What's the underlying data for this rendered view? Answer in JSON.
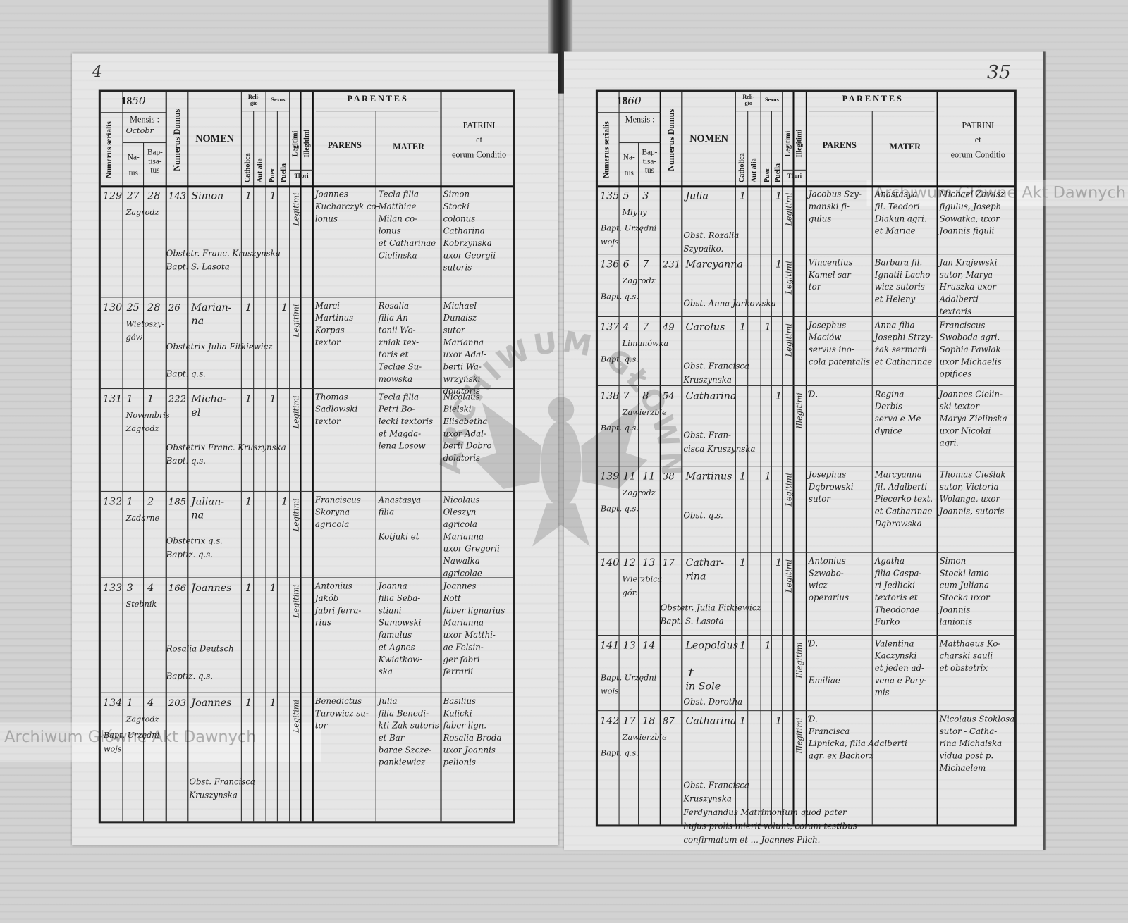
{
  "watermark": "Archiwum Główne Akt Dawnych",
  "seal_text": "ARCHIWUM GŁÓWNE AKT DAWNYCH",
  "header": {
    "year_prefix": "18",
    "mensis": "Mensis :",
    "numerus_serialis": "Numerus serialis",
    "natus": "Na-\ntus",
    "baptisatus": "Bap-\ntisa-\ntus",
    "numerus_domus": "Numerus Domus",
    "nomen": "NOMEN",
    "religio": "Reli-\ngio",
    "catholica": "Catholica",
    "aut_alia": "Aut alia",
    "sexus": "Sexus",
    "puer": "Puer",
    "puella": "Puella",
    "legitimi": "Legitimi",
    "illegitimi": "Illegitimi",
    "thori": "Thori",
    "parentes": "P A R E N T E S",
    "parens": "PARENS",
    "mater": "MATER",
    "patrini": "PATRINI\net\neorum Conditio"
  },
  "left_page": {
    "folio": "4",
    "year_hand": "50",
    "mensis_value": "Octobr",
    "rows": [
      {
        "serial": "129",
        "natus": "27",
        "baptisatus": "28",
        "domus": "143",
        "locality": "Zagrodz",
        "bapt_note": "",
        "nomen": "Simon",
        "catholica": "1",
        "sex": "puer",
        "sex_mark": "1",
        "thori": "Legitimi",
        "parens": "Joannes\nKucharczyk co-\nlonus",
        "mater": "Tecla filia\nMatthiae\nMilan co-\nlonus\net Catharinae\nCielinska",
        "patrini": "Simon\nStocki\ncolonus\nCatharina\nKobrzynska\nuxor Georgii\nsutoris",
        "note": "Obstetr. Franc. Kruszynska\n          Bapt. S. Lasota"
      },
      {
        "serial": "130",
        "natus": "25",
        "baptisatus": "28",
        "domus": "26",
        "locality": "Wietoszy-\ngów",
        "bapt_note": "",
        "nomen": "Marian-\nna",
        "catholica": "1",
        "sex": "puella",
        "sex_mark": "1",
        "thori": "Legitimi",
        "parens": "Marci-\nMartinus\nKorpas\ntextor",
        "mater": "Rosalia\nfilia An-\ntonii Wo-\nzniak tex-\ntoris et\nTeclae Su-\nmowska",
        "patrini": "Michael\nDunaisz\nsutor\nMarianna\nuxor Adal-\nberti Wa-\nwrzyński\ndolatoris",
        "note": "Obstetrix Julia Fitkiewicz\n\n          Bapt. q.s."
      },
      {
        "serial": "131",
        "natus": "1",
        "baptisatus": "1",
        "domus": "222",
        "locality": "Novembris\n        Zagrodz",
        "bapt_note": "",
        "nomen": "Micha-\nel",
        "catholica": "1",
        "sex": "puer",
        "sex_mark": "1",
        "thori": "Legitimi",
        "parens": "Thomas\nSadlowski\ntextor",
        "mater": "Tecla filia\nPetri Bo-\nlecki textoris\net Magda-\nlena Losow",
        "patrini": "Nicolaus\nBielski\nElisabetha\nuxor Adal-\nberti Dobro\ndolatoris",
        "note": "Obstetrix Franc. Kruszynska\n          Bapt. q.s."
      },
      {
        "serial": "132",
        "natus": "1",
        "baptisatus": "2",
        "domus": "185",
        "locality": "Zadarne",
        "bapt_note": "",
        "nomen": "Julian-\nna",
        "catholica": "1",
        "sex": "puella",
        "sex_mark": "1",
        "thori": "Legitimi",
        "parens": "Franciscus\nSkoryna\nagricola",
        "mater": "Anastasya\nfilia\n\nKotjuki et",
        "patrini": "Nicolaus\nOleszyn\nagricola\nMarianna\nuxor Gregorii\nNawalka\nagricolae",
        "note": "Obstetrix q.s.\n          Baptiz. q.s."
      },
      {
        "serial": "133",
        "natus": "3",
        "baptisatus": "4",
        "domus": "166",
        "locality": "Stebnik",
        "bapt_note": "",
        "nomen": "Joannes",
        "catholica": "1",
        "sex": "puer",
        "sex_mark": "1",
        "thori": "Legitimi",
        "parens": "Antonius\nJakób\nfabri ferra-\nrius",
        "mater": "Joanna\nfilia Seba-\nstiani\nSumowski\nfamulus\net Agnes\nKwiatkow-\nska",
        "patrini": "Joannes\nRott\nfaber lignarius\nMarianna\nuxor Matthi-\nae Felsin-\nger fabri\nferrarii",
        "note": "Rosalia Deutsch\n\n          Baptiz. q.s."
      },
      {
        "serial": "134",
        "natus": "1",
        "baptisatus": "4",
        "domus": "203",
        "locality": "Zagrodz",
        "bapt_note": "Bapt. Urzędni\n          wojs.",
        "nomen": "Joannes",
        "catholica": "1",
        "sex": "puer",
        "sex_mark": "1",
        "thori": "Legitimi",
        "parens": "Benedictus\nTurowicz su-\ntor",
        "mater": "Julia\nfilia Benedi-\nkti Zak sutoris\net Bar-\nbarae Szcze-\npankiewicz",
        "patrini": "Basilius\nKulicki\nfaber lign.\nRosalia Broda\nuxor Joannis\npelionis",
        "note": "Obst.  Francisca\n          Kruszynska"
      }
    ]
  },
  "right_page": {
    "folio": "35",
    "year_hand": "60",
    "mensis_value": "",
    "rows": [
      {
        "serial": "135",
        "natus": "5",
        "baptisatus": "3",
        "domus": "",
        "locality": "Mlyny",
        "bapt_note": "Bapt. Urzędni\n          wojs.",
        "nomen": "Julia",
        "catholica": "1",
        "sex": "puella",
        "sex_mark": "1",
        "thori": "Legitimi",
        "parens": "Jacobus Szy-\nmanski fi-\ngulus",
        "mater": "Anastasya\nfil. Teodori\nDiakun agri.\net Mariae",
        "patrini": "Michael Zawisz\nfigulus, Joseph\nSowatka, uxor\nJoannis figuli",
        "note": "Obst. Rozalia\n          Szypaiko."
      },
      {
        "serial": "136",
        "natus": "6",
        "baptisatus": "7",
        "domus": "231.",
        "locality": "Zagrodz",
        "bapt_note": "Bapt. q.s.",
        "nomen": "Marcyanna",
        "catholica": "",
        "sex": "puella",
        "sex_mark": "1",
        "thori": "Legitimi",
        "parens": "Vincentius\nKamel sar-\ntor",
        "mater": "Barbara fil.\nIgnatii Lacho-\nwicz sutoris\net Heleny",
        "patrini": "Jan Krajewski\nsutor, Marya\nHruszka uxor\nAdalberti\ntextoris",
        "note": "Obst. Anna Jarkowska"
      },
      {
        "serial": "137",
        "natus": "4",
        "baptisatus": "7",
        "domus": "49",
        "locality": "Limanówka",
        "bapt_note": "Bapt. q.s.",
        "nomen": "Carolus",
        "catholica": "1",
        "sex": "puer",
        "sex_mark": "1",
        "thori": "Legitimi",
        "parens": "Josephus\nMaciów\nservus ino-\ncola patentalis",
        "mater": "Anna filia\nJosephi Strzy-\nżak sermarii\net Catharinae",
        "patrini": "Franciscus\nSwoboda agri.\nSophia Pawlak\nuxor Michaelis\nopifices",
        "note": "Obst. Francisca\n          Kruszynska"
      },
      {
        "serial": "138",
        "natus": "7",
        "baptisatus": "8",
        "domus": "54",
        "locality": "Zawierzbie",
        "bapt_note": "Bapt. q.s.",
        "nomen": "Catharina",
        "catholica": "",
        "sex": "puella",
        "sex_mark": "1",
        "thori": "Illegitimi",
        "parens": "Ɗ.",
        "mater": "Regina\nDerbis\nserva e Me-\ndynice",
        "patrini": "Joannes Cielin-\nski textor\nMarya Zielinska\nuxor Nicolai\nagri.",
        "note": "Obst. Fran-\ncisca  Kruszynska"
      },
      {
        "serial": "139",
        "natus": "11",
        "baptisatus": "11",
        "domus": "38",
        "locality": "Zagrodz",
        "bapt_note": "Bapt. q.s.",
        "nomen": "Martinus",
        "catholica": "1",
        "sex": "puer",
        "sex_mark": "1",
        "thori": "Legitimi",
        "parens": "Josephus\nDąbrowski\nsutor",
        "mater": "Marcyanna\nfil. Adalberti\nPiecerko text.\net Catharinae\nDąbrowska",
        "patrini": "Thomas Cieślak\nsutor, Victoria\nWolanga, uxor\nJoannis, sutoris",
        "note": "Obst. q.s."
      },
      {
        "serial": "140",
        "natus": "12",
        "baptisatus": "13",
        "domus": "17",
        "locality": "Wierzbica\n     gór.",
        "bapt_note": "",
        "nomen": "Cathar-\nrina",
        "catholica": "1",
        "sex": "puella",
        "sex_mark": "1",
        "thori": "Legitimi",
        "parens": "Antonius\nSzwabo-\nwicz\noperarius",
        "mater": "Agatha\nfilia Caspa-\nri Jedlicki\ntextoris et\nTheodorae\nFurko",
        "patrini": "Simon\nStocki lanio\ncum Juliana\nStocka uxor\nJoannis\nlanionis",
        "note": "Obstetr. Julia Fitkiewicz\n          Bapt. S. Lasota"
      },
      {
        "serial": "141",
        "natus": "13",
        "baptisatus": "14",
        "domus": "",
        "locality": "",
        "bapt_note": "Bapt. Urzędni\n          wojs.",
        "nomen": "Leopoldus\n\n   ✝\n  in Sole",
        "catholica": "1",
        "sex": "puer",
        "sex_mark": "1",
        "thori": "Illegitimi",
        "parens": "Ɗ.\n\n\nEmiliae",
        "mater": "Valentina\nKaczynski\net jeden ad-\nvena e Pory-\nmis",
        "patrini": "Matthaeus Ko-\ncharski sauli\net obstetrix",
        "note": "Obst. Dorotha"
      },
      {
        "serial": "142",
        "natus": "17",
        "baptisatus": "18",
        "domus": "87",
        "locality": "Zawierzbie",
        "bapt_note": "Bapt. q.s.",
        "nomen": "Catharina",
        "catholica": "1",
        "sex": "puella",
        "sex_mark": "1",
        "thori": "Illegitimi",
        "parens": "Ɗ.\nFrancisca\nLipnicka, filia Adalberti\nagr. ex Bachorz",
        "mater": "",
        "patrini": "Nicolaus Stoklosa\nsutor - Catha-\nrina Michalska\nvidua post p.\nMichaelem",
        "note": "Obst. Francisca\n          Kruszynska\nFerdynandus   Matrimonium quod pater\nhujus prolis inierit volunt, coram testibus\nconfirmatum    et  ...   Joannes Pilch."
      }
    ]
  }
}
